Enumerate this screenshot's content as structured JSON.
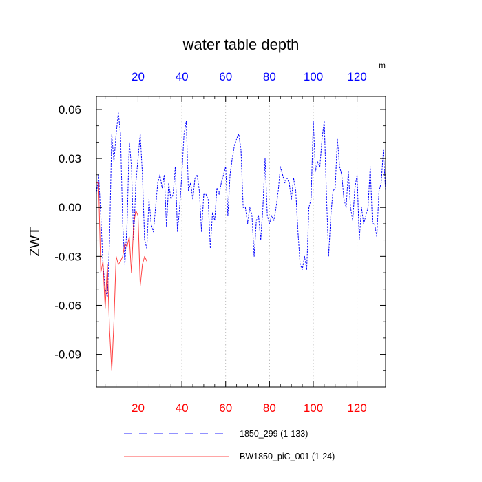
{
  "chart_data": {
    "type": "line",
    "title": "water table depth",
    "ylabel": "ZWT",
    "units": "m",
    "xlim": [
      1,
      133
    ],
    "ylim": [
      -0.11,
      0.068
    ],
    "x_ticks": [
      20,
      40,
      60,
      80,
      100,
      120
    ],
    "y_ticks": [
      -0.09,
      -0.06,
      -0.03,
      0.0,
      0.03,
      0.06
    ],
    "y_tick_labels": [
      "-0.09",
      "-0.06",
      "-0.03",
      "0.00",
      "0.03",
      "0.06"
    ],
    "top_axis_color": "#0000ff",
    "bottom_axis_color": "#ff0000",
    "grid": "vertical-dotted",
    "legend_position": "bottom",
    "series": [
      {
        "name": "1850_299 (1-133)",
        "color": "#0000ff",
        "dash": "dashed",
        "x": [
          1,
          2,
          3,
          4,
          5,
          6,
          7,
          8,
          9,
          10,
          11,
          12,
          13,
          14,
          15,
          16,
          17,
          18,
          19,
          20,
          21,
          22,
          23,
          24,
          25,
          26,
          27,
          28,
          29,
          30,
          31,
          32,
          33,
          34,
          35,
          36,
          37,
          38,
          39,
          40,
          41,
          42,
          43,
          44,
          45,
          46,
          47,
          48,
          49,
          50,
          51,
          52,
          53,
          54,
          55,
          56,
          57,
          58,
          59,
          60,
          61,
          62,
          63,
          64,
          65,
          66,
          67,
          68,
          69,
          70,
          71,
          72,
          73,
          74,
          75,
          76,
          77,
          78,
          79,
          80,
          81,
          82,
          83,
          84,
          85,
          86,
          87,
          88,
          89,
          90,
          91,
          92,
          93,
          94,
          95,
          96,
          97,
          98,
          99,
          100,
          101,
          102,
          103,
          104,
          105,
          106,
          107,
          108,
          109,
          110,
          111,
          112,
          113,
          114,
          115,
          116,
          117,
          118,
          119,
          120,
          121,
          122,
          123,
          124,
          125,
          126,
          127,
          128,
          129,
          130,
          131,
          132,
          133
        ],
        "values": [
          0.008,
          0.02,
          -0.005,
          -0.035,
          -0.05,
          -0.055,
          -0.02,
          0.045,
          0.028,
          0.045,
          0.058,
          0.045,
          -0.01,
          -0.035,
          -0.01,
          0.04,
          0.025,
          -0.02,
          0.015,
          0.03,
          0.045,
          0.02,
          -0.02,
          -0.025,
          0.005,
          -0.01,
          -0.015,
          0.0,
          0.015,
          0.02,
          0.012,
          0.02,
          -0.012,
          0.015,
          0.005,
          0.008,
          0.025,
          -0.015,
          0.0,
          0.02,
          0.045,
          0.053,
          0.01,
          0.015,
          0.005,
          0.018,
          0.02,
          0.01,
          -0.015,
          0.008,
          0.008,
          0.005,
          -0.025,
          -0.003,
          -0.008,
          0.012,
          0.008,
          0.015,
          0.02,
          0.025,
          -0.005,
          0.02,
          0.03,
          0.038,
          0.042,
          0.045,
          0.035,
          0.0,
          0.0,
          -0.01,
          0.0,
          -0.005,
          -0.03,
          -0.008,
          -0.005,
          -0.02,
          0.0,
          0.03,
          -0.005,
          -0.01,
          -0.005,
          -0.008,
          0.0,
          0.01,
          0.025,
          0.02,
          0.015,
          0.018,
          0.015,
          0.005,
          0.018,
          0.01,
          -0.015,
          -0.035,
          -0.038,
          -0.03,
          -0.038,
          0.0,
          0.005,
          0.053,
          0.022,
          0.028,
          0.025,
          0.042,
          0.053,
          0.008,
          -0.03,
          -0.005,
          0.01,
          0.012,
          0.042,
          0.025,
          0.02,
          0.005,
          0.0,
          0.022,
          0.0,
          -0.008,
          0.012,
          0.02,
          -0.02,
          0.0,
          -0.01,
          -0.005,
          0.0,
          0.025,
          -0.01,
          -0.01,
          -0.018,
          0.01,
          0.015,
          0.035,
          0.01
        ]
      },
      {
        "name": "BW1850_piC_001 (1-24)",
        "color": "#ff0000",
        "dash": "solid",
        "x": [
          1,
          2,
          3,
          4,
          5,
          6,
          7,
          8,
          9,
          10,
          11,
          12,
          13,
          14,
          15,
          16,
          17,
          18,
          19,
          20,
          21,
          22,
          23,
          24
        ],
        "values": [
          0.015,
          0.015,
          -0.04,
          -0.033,
          -0.062,
          -0.035,
          -0.075,
          -0.1,
          -0.07,
          -0.03,
          -0.035,
          -0.033,
          -0.03,
          -0.022,
          -0.024,
          -0.018,
          -0.04,
          -0.01,
          -0.002,
          -0.005,
          -0.048,
          -0.035,
          -0.03,
          -0.033
        ]
      }
    ]
  }
}
